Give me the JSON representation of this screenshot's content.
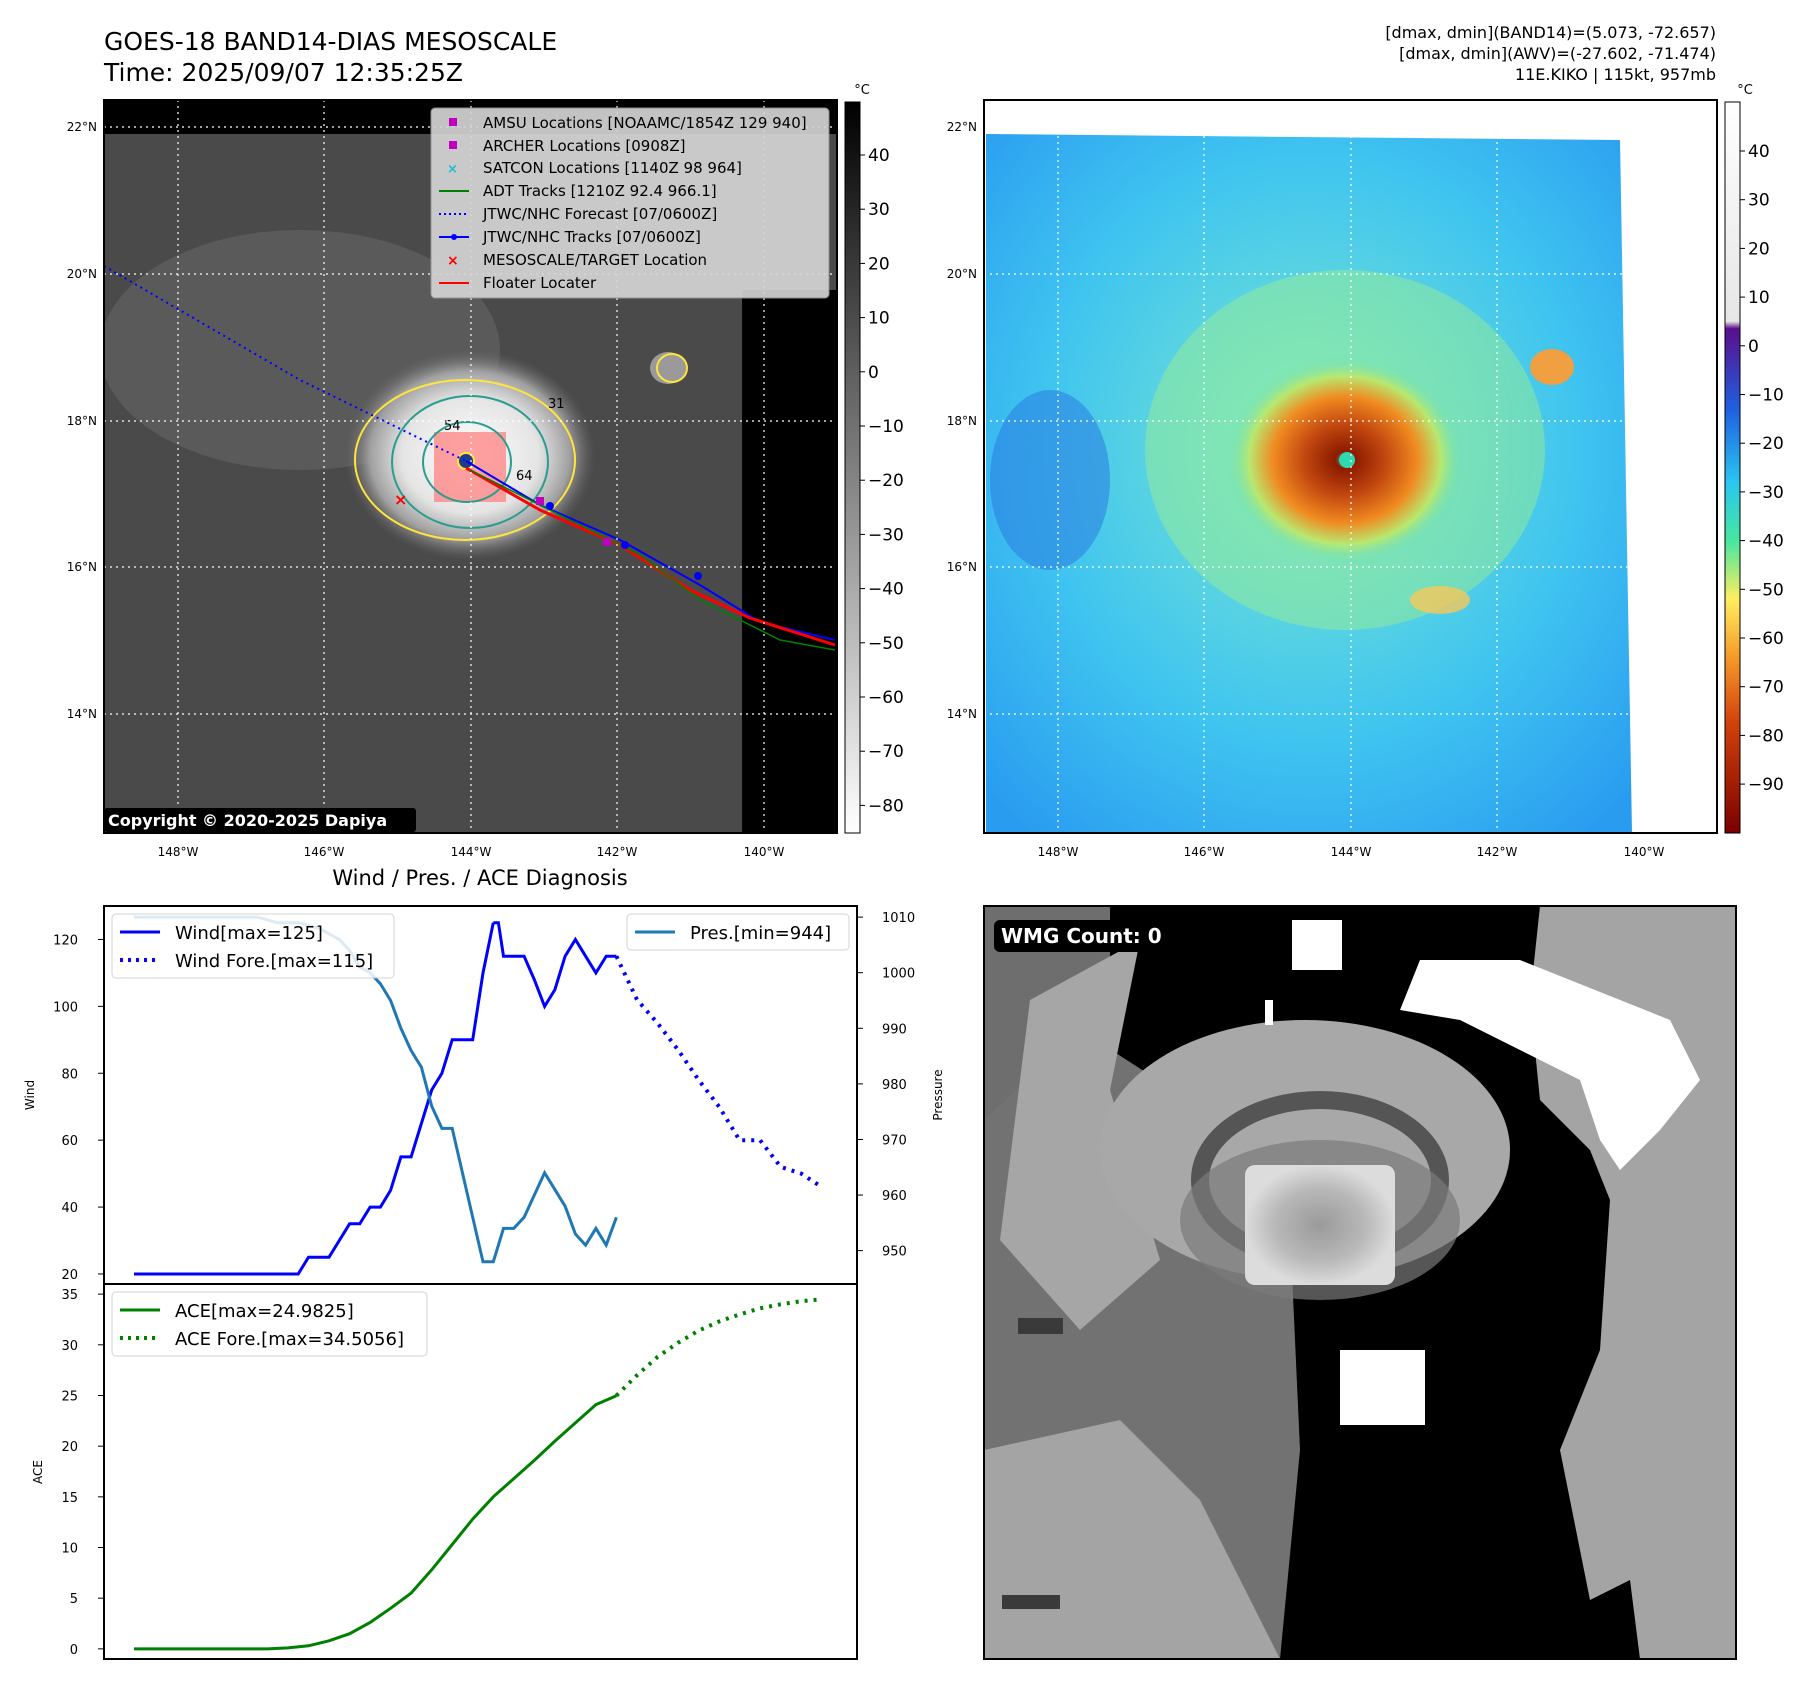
{
  "header": {
    "title_line1": "GOES-18 BAND14-DIAS MESOSCALE",
    "title_line2": "Time: 2025/09/07 12:35:25Z",
    "dmax_band14": "[dmax, dmin](BAND14)=(5.073, -72.657)",
    "dmax_awv": "[dmax, dmin](AWV)=(-27.602, -71.474)",
    "storm_info": "11E.KIKO | 115kt, 957mb"
  },
  "ir_panel": {
    "copyright": "Copyright © 2020-2025 Dapiya",
    "lat_labels": [
      "22°N",
      "20°N",
      "18°N",
      "16°N",
      "14°N"
    ],
    "lon_labels": [
      "148°W",
      "146°W",
      "144°W",
      "142°W",
      "140°W"
    ],
    "contour_labels": [
      "31",
      "54",
      "64"
    ],
    "colorbar_unit": "°C",
    "colorbar_ticks": [
      "40",
      "30",
      "20",
      "10",
      "0",
      "−10",
      "−20",
      "−30",
      "−40",
      "−50",
      "−60",
      "−70",
      "−80"
    ],
    "legend": [
      {
        "label": "AMSU Locations [NOAAMC/1854Z 129 940]",
        "color": "#bf00bf",
        "marker": "square"
      },
      {
        "label": "ARCHER Locations [0908Z]",
        "color": "#bf00bf",
        "marker": "square"
      },
      {
        "label": "SATCON Locations [1140Z 98 964]",
        "color": "#17becf",
        "marker": "x"
      },
      {
        "label": "ADT Tracks [1210Z 92.4 966.1]",
        "color": "#008000",
        "marker": "line"
      },
      {
        "label": "JTWC/NHC Forecast [07/0600Z]",
        "color": "#0000ff",
        "marker": "dotted"
      },
      {
        "label": "JTWC/NHC Tracks [07/0600Z]",
        "color": "#0000ff",
        "marker": "line-dot"
      },
      {
        "label": "MESOSCALE/TARGET Location",
        "color": "#ff0000",
        "marker": "x"
      },
      {
        "label": "Floater Locater",
        "color": "#ff0000",
        "marker": "line"
      }
    ]
  },
  "wv_panel": {
    "lat_labels": [
      "22°N",
      "20°N",
      "18°N",
      "16°N",
      "14°N"
    ],
    "lon_labels": [
      "148°W",
      "146°W",
      "144°W",
      "142°W",
      "140°W"
    ],
    "colorbar_unit": "°C",
    "colorbar_ticks": [
      "40",
      "30",
      "20",
      "10",
      "0",
      "−10",
      "−20",
      "−30",
      "−40",
      "−50",
      "−60",
      "−70",
      "−80",
      "−90"
    ]
  },
  "wmg_panel": {
    "label": "WMG Count: 0"
  },
  "colors": {
    "wind": "#0000ff",
    "pressure": "#1f77b4",
    "ace": "#008000"
  },
  "chart_data": [
    {
      "type": "line",
      "title": "Wind / Pres. / ACE Diagnosis",
      "ylabel": "Wind",
      "ylabel_right": "Pressure",
      "ylim": [
        17,
        130
      ],
      "ylim_right": [
        944,
        1012
      ],
      "yticks": [
        20,
        40,
        60,
        80,
        100,
        120
      ],
      "yticks_right": [
        950,
        960,
        970,
        980,
        990,
        1000,
        1010
      ],
      "series": [
        {
          "name": "Wind[max=125]",
          "axis": "left",
          "style": "solid",
          "x": [
            0,
            8,
            16,
            20,
            22,
            26,
            28,
            30,
            32,
            34,
            36,
            38,
            40,
            42,
            44,
            46,
            48,
            50,
            52,
            54,
            56,
            58,
            60,
            62,
            64,
            66,
            68,
            70
          ],
          "values": [
            20,
            20,
            20,
            20,
            20,
            20,
            20,
            20,
            20,
            25,
            25,
            25,
            30,
            35,
            35,
            40,
            40,
            45,
            55,
            55,
            65,
            75,
            80,
            90,
            90,
            90,
            110,
            125
          ]
        },
        {
          "name": "",
          "axis": "left",
          "style": "solid",
          "x": [
            70,
            71,
            72,
            74,
            76,
            78,
            80,
            82,
            84,
            86,
            88,
            90,
            92,
            94
          ],
          "values": [
            125,
            125,
            115,
            115,
            115,
            108,
            100,
            105,
            115,
            120,
            115,
            110,
            115,
            115
          ]
        },
        {
          "name": "Wind Fore.[max=115]",
          "axis": "left",
          "style": "dotted",
          "x": [
            94,
            98,
            102,
            106,
            110,
            114,
            118,
            122,
            126,
            130,
            134
          ],
          "values": [
            115,
            102,
            95,
            87,
            78,
            70,
            60,
            60,
            52,
            50,
            46
          ]
        },
        {
          "name": "Pres.[min=944]",
          "axis": "right",
          "style": "solid",
          "x": [
            0,
            20,
            24,
            28,
            32,
            36,
            38,
            40,
            42,
            44,
            46,
            48,
            50,
            52,
            54,
            56,
            58,
            60,
            62,
            66,
            68,
            70,
            72,
            74,
            76,
            80,
            84,
            86,
            88,
            90,
            92,
            94
          ],
          "values": [
            1010,
            1010,
            1010,
            1009,
            1009,
            1008,
            1007,
            1006,
            1004,
            1001,
            1000,
            998,
            995,
            990,
            986,
            983,
            976,
            972,
            972,
            956,
            948,
            948,
            954,
            954,
            956,
            964,
            958,
            953,
            951,
            954,
            951,
            956
          ]
        }
      ]
    },
    {
      "type": "line",
      "ylabel": "ACE",
      "ylim": [
        -1,
        36
      ],
      "yticks": [
        0,
        5,
        10,
        15,
        20,
        25,
        30,
        35
      ],
      "series": [
        {
          "name": "ACE[max=24.9825]",
          "style": "solid",
          "x": [
            0,
            10,
            20,
            26,
            30,
            34,
            38,
            42,
            46,
            50,
            54,
            58,
            62,
            66,
            70,
            74,
            78,
            82,
            86,
            90,
            94
          ],
          "values": [
            0,
            0,
            0,
            0,
            0.1,
            0.3,
            0.8,
            1.5,
            2.6,
            4.0,
            5.5,
            7.8,
            10.3,
            12.8,
            15.0,
            16.8,
            18.6,
            20.5,
            22.3,
            24.1,
            24.98
          ]
        },
        {
          "name": "ACE Fore.[max=34.5056]",
          "style": "dotted",
          "x": [
            94,
            98,
            102,
            106,
            110,
            114,
            118,
            122,
            126,
            130,
            134
          ],
          "values": [
            24.98,
            27.0,
            28.8,
            30.2,
            31.4,
            32.3,
            33.0,
            33.6,
            34.0,
            34.3,
            34.5
          ]
        }
      ]
    }
  ]
}
